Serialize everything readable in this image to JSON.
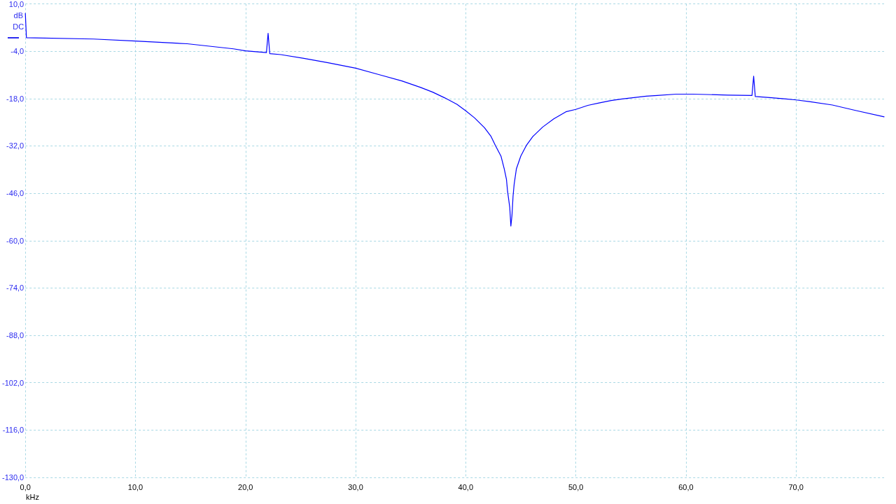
{
  "chart_data": {
    "type": "line",
    "xlabel": "kHz",
    "ylabel": "dB",
    "annotations": [
      {
        "text": "DC",
        "x": 0,
        "y": 0
      }
    ],
    "x": [
      0,
      0.1,
      6.2,
      10.0,
      14.7,
      18.9,
      20.0,
      21.9,
      22.05,
      22.2,
      23.2,
      25.3,
      27.5,
      30.0,
      32.1,
      34.2,
      35.9,
      37.0,
      38.1,
      39.2,
      40.0,
      40.8,
      41.7,
      42.3,
      42.7,
      43.2,
      43.5,
      43.7,
      43.8,
      44.0,
      44.1,
      44.2,
      44.3,
      44.4,
      44.6,
      45.0,
      45.5,
      46.1,
      47.0,
      48.0,
      49.1,
      50.0,
      51.1,
      52.1,
      53.2,
      54.2,
      55.3,
      56.4,
      57.4,
      59.1,
      60.6,
      61.9,
      63.8,
      66.0,
      66.15,
      66.3,
      67.6,
      69.1,
      70.0,
      71.2,
      73.3,
      75.4,
      78.0
    ],
    "series": [
      {
        "color": "#0000ff",
        "values": [
          7.2,
          0.0,
          -0.4,
          -1.0,
          -1.8,
          -3.3,
          -3.9,
          -4.4,
          1.3,
          -4.7,
          -5.0,
          -6.1,
          -7.4,
          -9.0,
          -10.9,
          -12.8,
          -14.7,
          -16.1,
          -17.8,
          -19.7,
          -21.6,
          -23.7,
          -26.6,
          -29.2,
          -31.9,
          -35.0,
          -38.8,
          -41.9,
          -45.4,
          -50.2,
          -55.7,
          -52.6,
          -46.8,
          -43.3,
          -38.8,
          -35.0,
          -31.9,
          -29.2,
          -26.4,
          -24.0,
          -21.9,
          -21.2,
          -20.0,
          -19.3,
          -18.6,
          -18.1,
          -17.7,
          -17.3,
          -17.1,
          -16.7,
          -16.7,
          -16.8,
          -17.0,
          -17.1,
          -11.4,
          -17.4,
          -17.7,
          -18.1,
          -18.4,
          -18.9,
          -19.9,
          -21.5,
          -23.4
        ]
      }
    ],
    "xlim": [
      0,
      78
    ],
    "ylim": [
      -130,
      10
    ],
    "xticks": [
      {
        "value": 0,
        "label": "0,0"
      },
      {
        "value": 10,
        "label": "10,0"
      },
      {
        "value": 20,
        "label": "20,0"
      },
      {
        "value": 30,
        "label": "30,0"
      },
      {
        "value": 40,
        "label": "40,0"
      },
      {
        "value": 50,
        "label": "50,0"
      },
      {
        "value": 60,
        "label": "60,0"
      },
      {
        "value": 70,
        "label": "70,0"
      }
    ],
    "yticks": [
      {
        "value": 10,
        "label": "10,0"
      },
      {
        "value": -4,
        "label": "-4,0"
      },
      {
        "value": -18,
        "label": "-18,0"
      },
      {
        "value": -32,
        "label": "-32,0"
      },
      {
        "value": -46,
        "label": "-46,0"
      },
      {
        "value": -60,
        "label": "-60,0"
      },
      {
        "value": -74,
        "label": "-74,0"
      },
      {
        "value": -88,
        "label": "-88,0"
      },
      {
        "value": -102,
        "label": "-102,0"
      },
      {
        "value": -116,
        "label": "-116,0"
      },
      {
        "value": -130,
        "label": "-130,0"
      }
    ],
    "grid": true,
    "marker": "none",
    "line_style": "solid"
  }
}
